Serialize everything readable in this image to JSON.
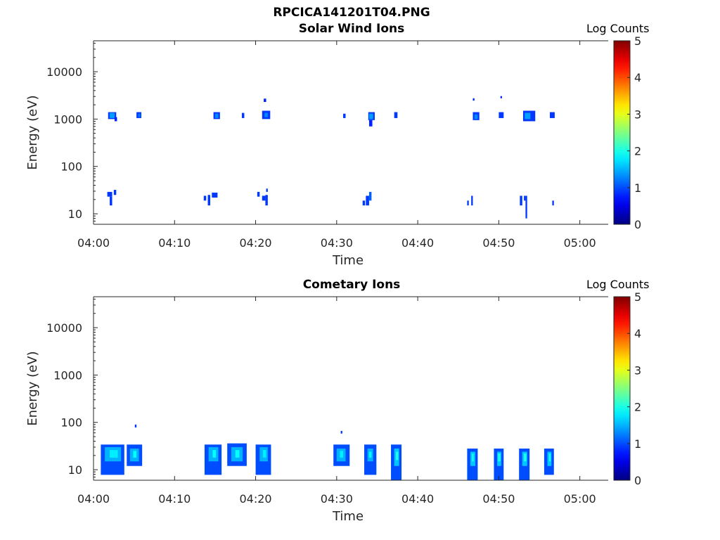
{
  "figure_title": "RPCICA141201T04.PNG",
  "colors": {
    "colormap": "jet",
    "axis": "#262626",
    "background": "#ffffff"
  },
  "chart_data": [
    {
      "type": "heatmap",
      "title": "Solar Wind Ions",
      "xlabel": "Time",
      "ylabel": "Energy (eV)",
      "x_ticks": [
        "04:00",
        "04:10",
        "04:20",
        "04:30",
        "04:40",
        "04:50",
        "05:00"
      ],
      "x_tick_minutes": [
        0,
        10,
        20,
        30,
        40,
        50,
        60
      ],
      "xlim_minutes": [
        0,
        63.5
      ],
      "y_scale": "log",
      "y_ticks": [
        "10",
        "100",
        "1000",
        "10000"
      ],
      "y_tick_values": [
        10,
        100,
        1000,
        10000
      ],
      "ylim": [
        6,
        45000
      ],
      "colorbar": {
        "label": "Log Counts",
        "range": [
          0,
          5
        ],
        "ticks": [
          "0",
          "1",
          "2",
          "3",
          "4",
          "5"
        ]
      },
      "cells": [
        [
          1.8,
          2.8,
          1000,
          1400,
          0.9
        ],
        [
          2.0,
          2.6,
          1050,
          1350,
          1.4
        ],
        [
          2.6,
          2.9,
          900,
          1100,
          0.8
        ],
        [
          5.3,
          5.9,
          1050,
          1400,
          0.9
        ],
        [
          5.5,
          5.8,
          1100,
          1300,
          1.2
        ],
        [
          14.8,
          15.6,
          1000,
          1400,
          0.9
        ],
        [
          15.0,
          15.4,
          1050,
          1300,
          1.3
        ],
        [
          18.3,
          18.6,
          1050,
          1350,
          0.9
        ],
        [
          21.0,
          21.3,
          2300,
          2700,
          0.8
        ],
        [
          20.8,
          21.8,
          1000,
          1500,
          0.9
        ],
        [
          21.1,
          21.5,
          1100,
          1350,
          1.3
        ],
        [
          30.8,
          31.1,
          1050,
          1300,
          0.9
        ],
        [
          33.9,
          34.7,
          950,
          1400,
          0.9
        ],
        [
          34.0,
          34.5,
          1000,
          1300,
          1.4
        ],
        [
          34.0,
          34.4,
          700,
          950,
          0.8
        ],
        [
          37.1,
          37.5,
          1050,
          1400,
          0.9
        ],
        [
          46.8,
          47.0,
          2450,
          2750,
          0.8
        ],
        [
          46.8,
          47.6,
          950,
          1400,
          0.9
        ],
        [
          47.0,
          47.4,
          1000,
          1250,
          1.3
        ],
        [
          50.2,
          50.4,
          2750,
          3050,
          0.8
        ],
        [
          50.0,
          50.6,
          1050,
          1400,
          0.9
        ],
        [
          53.0,
          54.5,
          900,
          1500,
          0.9
        ],
        [
          53.2,
          53.9,
          1000,
          1350,
          1.4
        ],
        [
          56.3,
          56.9,
          1050,
          1400,
          0.9
        ],
        [
          1.7,
          2.3,
          23,
          29,
          0.9
        ],
        [
          2.0,
          2.3,
          15,
          23,
          0.9
        ],
        [
          2.5,
          2.8,
          25,
          32,
          0.9
        ],
        [
          13.6,
          13.9,
          19,
          24,
          0.9
        ],
        [
          14.1,
          14.4,
          15,
          25,
          0.9
        ],
        [
          14.6,
          15.3,
          22,
          28,
          0.9
        ],
        [
          20.2,
          20.5,
          23,
          29,
          0.9
        ],
        [
          20.8,
          21.2,
          19,
          24,
          0.9
        ],
        [
          21.2,
          21.5,
          15,
          25,
          0.9
        ],
        [
          21.3,
          21.5,
          29,
          34,
          0.9
        ],
        [
          33.2,
          33.5,
          15,
          19,
          0.9
        ],
        [
          33.6,
          34.0,
          15,
          24,
          0.9
        ],
        [
          34.0,
          34.3,
          19,
          29,
          1.1
        ],
        [
          46.1,
          46.3,
          15,
          19,
          0.9
        ],
        [
          46.6,
          46.8,
          15,
          24,
          0.9
        ],
        [
          52.6,
          52.9,
          15,
          24,
          0.9
        ],
        [
          53.1,
          53.3,
          19,
          24,
          0.9
        ],
        [
          53.3,
          53.5,
          8,
          24,
          0.9
        ],
        [
          56.6,
          56.8,
          15,
          19,
          0.9
        ]
      ]
    },
    {
      "type": "heatmap",
      "title": "Cometary Ions",
      "xlabel": "Time",
      "ylabel": "Energy (eV)",
      "x_ticks": [
        "04:00",
        "04:10",
        "04:20",
        "04:30",
        "04:40",
        "04:50",
        "05:00"
      ],
      "x_tick_minutes": [
        0,
        10,
        20,
        30,
        40,
        50,
        60
      ],
      "xlim_minutes": [
        0,
        63.5
      ],
      "y_scale": "log",
      "y_ticks": [
        "10",
        "100",
        "1000",
        "10000"
      ],
      "y_tick_values": [
        10,
        100,
        1000,
        10000
      ],
      "ylim": [
        6,
        45000
      ],
      "colorbar": {
        "label": "Log Counts",
        "range": [
          0,
          5
        ],
        "ticks": [
          "0",
          "1",
          "2",
          "3",
          "4",
          "5"
        ]
      },
      "cells": [
        [
          0.9,
          3.8,
          7.8,
          34,
          1.0
        ],
        [
          1.4,
          3.4,
          15,
          30,
          1.5
        ],
        [
          2.0,
          3.0,
          18,
          26,
          1.8
        ],
        [
          4.1,
          6.0,
          12,
          34,
          1.0
        ],
        [
          4.5,
          5.6,
          15,
          28,
          1.5
        ],
        [
          4.9,
          5.3,
          18,
          25,
          1.9
        ],
        [
          5.1,
          5.3,
          78,
          90,
          0.9
        ],
        [
          13.7,
          15.8,
          7.8,
          34,
          1.0
        ],
        [
          14.2,
          15.4,
          15,
          30,
          1.5
        ],
        [
          14.7,
          15.1,
          18,
          26,
          1.9
        ],
        [
          16.5,
          18.9,
          12,
          36,
          1.0
        ],
        [
          17.0,
          18.4,
          15,
          30,
          1.5
        ],
        [
          17.5,
          18.0,
          18,
          26,
          1.9
        ],
        [
          20.0,
          21.9,
          7.8,
          34,
          1.0
        ],
        [
          20.5,
          21.5,
          15,
          30,
          1.5
        ],
        [
          20.9,
          21.3,
          18,
          26,
          1.8
        ],
        [
          29.6,
          31.6,
          12,
          34,
          1.0
        ],
        [
          30.0,
          31.1,
          15,
          28,
          1.5
        ],
        [
          30.4,
          30.8,
          18,
          25,
          1.8
        ],
        [
          30.5,
          30.7,
          58,
          66,
          0.9
        ],
        [
          33.4,
          34.9,
          7.8,
          34,
          1.0
        ],
        [
          33.8,
          34.5,
          15,
          28,
          1.5
        ],
        [
          34.0,
          34.3,
          18,
          24,
          1.9
        ],
        [
          36.7,
          38.0,
          6,
          34,
          1.0
        ],
        [
          37.1,
          37.7,
          12,
          28,
          1.6
        ],
        [
          37.3,
          37.6,
          16,
          24,
          2.0
        ],
        [
          46.1,
          47.4,
          6,
          28,
          1.0
        ],
        [
          46.5,
          47.1,
          12,
          24,
          1.6
        ],
        [
          46.7,
          46.9,
          15,
          22,
          2.0
        ],
        [
          49.4,
          50.6,
          6,
          28,
          1.0
        ],
        [
          49.8,
          50.3,
          12,
          24,
          1.6
        ],
        [
          49.9,
          50.2,
          15,
          22,
          2.0
        ],
        [
          52.5,
          53.8,
          6,
          28,
          1.0
        ],
        [
          52.9,
          53.5,
          12,
          24,
          1.6
        ],
        [
          53.1,
          53.4,
          15,
          22,
          2.0
        ],
        [
          55.6,
          56.8,
          7.8,
          28,
          1.0
        ],
        [
          56.0,
          56.5,
          12,
          24,
          1.6
        ],
        [
          56.2,
          56.4,
          15,
          22,
          2.0
        ]
      ]
    }
  ]
}
